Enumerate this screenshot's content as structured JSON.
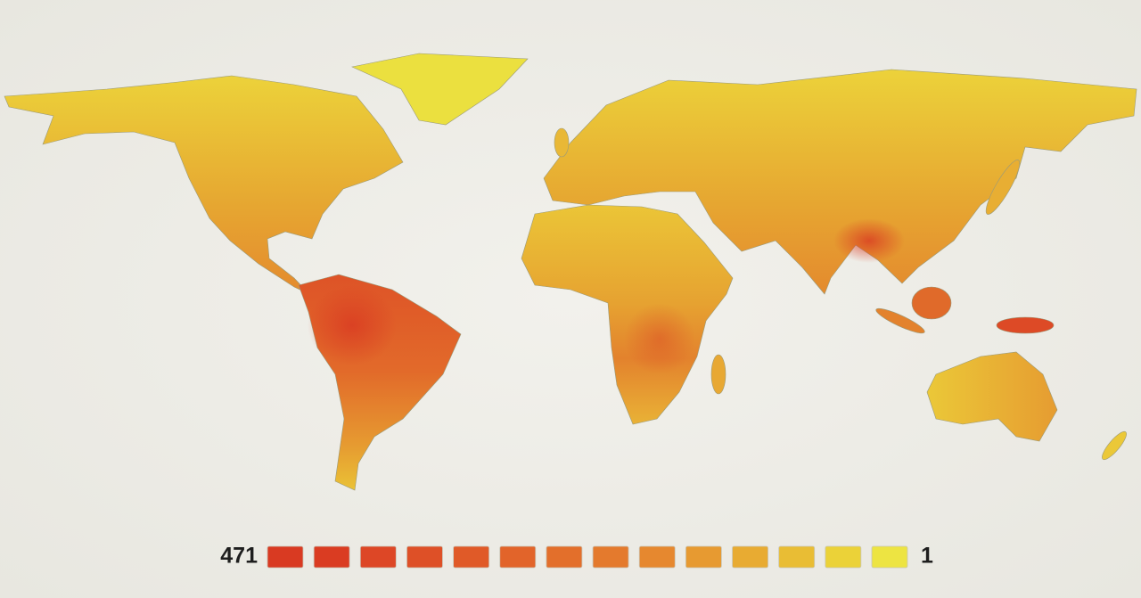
{
  "legend": {
    "high_label": "471",
    "low_label": "1",
    "colors": [
      "#d93a22",
      "#da3c22",
      "#dd4726",
      "#de5027",
      "#e05a28",
      "#e2642a",
      "#e36f2b",
      "#e47a2d",
      "#e6882f",
      "#e79a31",
      "#e8ab32",
      "#e9bd34",
      "#ebd238",
      "#ede442"
    ]
  }
}
